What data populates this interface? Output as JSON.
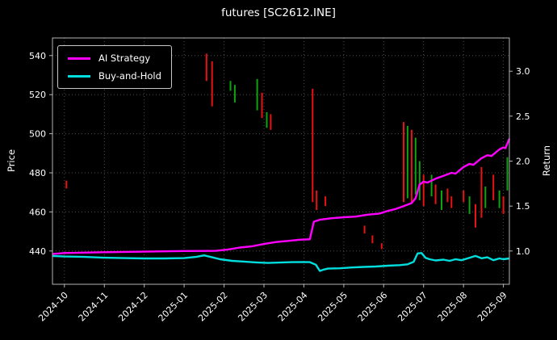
{
  "colors": {
    "background": "#000000",
    "text": "#ffffff",
    "grid": "#4d4d4d",
    "frame": "#b4b4b4"
  },
  "chart_data": {
    "type": "line",
    "title": "futures [SC2612.INE]",
    "ylabel_left": "Price",
    "ylabel_right": "Return",
    "x_ticks": [
      "2024-10",
      "2024-11",
      "2024-12",
      "2025-01",
      "2025-02",
      "2025-03",
      "2025-04",
      "2025-05",
      "2025-06",
      "2025-07",
      "2025-08",
      "2025-09"
    ],
    "y_ticks_left": [
      440,
      460,
      480,
      500,
      520,
      540
    ],
    "y_ticks_right": [
      1.0,
      1.5,
      2.0,
      2.5,
      3.0
    ],
    "x_domain": [
      -0.3,
      11.15
    ],
    "price_domain": [
      423,
      549
    ],
    "return_domain": [
      0.63,
      3.37
    ],
    "grid": true,
    "legend_position": "upper-left",
    "series": [
      {
        "name": "AI Strategy",
        "color": "#ff00ff",
        "axis": "price",
        "points": [
          [
            -0.3,
            438.5
          ],
          [
            0,
            439
          ],
          [
            1,
            439.4
          ],
          [
            2,
            439.7
          ],
          [
            3,
            440
          ],
          [
            3.8,
            440.1
          ],
          [
            4.1,
            440.8
          ],
          [
            4.4,
            441.8
          ],
          [
            4.7,
            442.4
          ],
          [
            5,
            443.6
          ],
          [
            5.3,
            444.6
          ],
          [
            5.6,
            445.2
          ],
          [
            5.9,
            445.8
          ],
          [
            6.15,
            446
          ],
          [
            6.25,
            455
          ],
          [
            6.4,
            456
          ],
          [
            6.7,
            456.8
          ],
          [
            7,
            457.3
          ],
          [
            7.3,
            457.6
          ],
          [
            7.6,
            458.6
          ],
          [
            7.9,
            459.2
          ],
          [
            8.1,
            460.5
          ],
          [
            8.3,
            461.5
          ],
          [
            8.5,
            463
          ],
          [
            8.7,
            464.5
          ],
          [
            8.8,
            467
          ],
          [
            8.9,
            474
          ],
          [
            9,
            475.5
          ],
          [
            9.1,
            475
          ],
          [
            9.3,
            477
          ],
          [
            9.5,
            478.5
          ],
          [
            9.7,
            480
          ],
          [
            9.8,
            479.6
          ],
          [
            10,
            483
          ],
          [
            10.15,
            484.6
          ],
          [
            10.25,
            484.1
          ],
          [
            10.45,
            487.5
          ],
          [
            10.6,
            489
          ],
          [
            10.7,
            488.6
          ],
          [
            10.9,
            492
          ],
          [
            11,
            493
          ],
          [
            11.05,
            492.6
          ],
          [
            11.15,
            497.5
          ]
        ]
      },
      {
        "name": "Buy-and-Hold",
        "color": "#00dede",
        "axis": "price",
        "points": [
          [
            -0.3,
            437.5
          ],
          [
            0,
            437.2
          ],
          [
            0.5,
            437
          ],
          [
            1,
            436.6
          ],
          [
            1.5,
            436.4
          ],
          [
            2,
            436.2
          ],
          [
            2.5,
            436.2
          ],
          [
            3,
            436.4
          ],
          [
            3.3,
            437
          ],
          [
            3.5,
            437.8
          ],
          [
            3.7,
            436.8
          ],
          [
            3.9,
            435.8
          ],
          [
            4.2,
            435
          ],
          [
            4.5,
            434.6
          ],
          [
            4.8,
            434.2
          ],
          [
            5.1,
            433.9
          ],
          [
            5.4,
            434.1
          ],
          [
            5.7,
            434.3
          ],
          [
            6,
            434.4
          ],
          [
            6.15,
            434.3
          ],
          [
            6.3,
            433
          ],
          [
            6.4,
            429.8
          ],
          [
            6.5,
            430.5
          ],
          [
            6.6,
            431
          ],
          [
            6.9,
            431.2
          ],
          [
            7.2,
            431.6
          ],
          [
            7.5,
            431.9
          ],
          [
            7.8,
            432.1
          ],
          [
            8.1,
            432.5
          ],
          [
            8.4,
            432.8
          ],
          [
            8.6,
            433.2
          ],
          [
            8.75,
            434.5
          ],
          [
            8.85,
            438.8
          ],
          [
            8.95,
            439
          ],
          [
            9.05,
            436.5
          ],
          [
            9.15,
            435.8
          ],
          [
            9.3,
            435.2
          ],
          [
            9.5,
            435.6
          ],
          [
            9.65,
            435
          ],
          [
            9.8,
            435.8
          ],
          [
            9.95,
            435.3
          ],
          [
            10.1,
            436.2
          ],
          [
            10.3,
            437.5
          ],
          [
            10.45,
            436.3
          ],
          [
            10.6,
            436.8
          ],
          [
            10.75,
            435.3
          ],
          [
            10.9,
            436.2
          ],
          [
            11,
            435.8
          ],
          [
            11.15,
            436.2
          ]
        ]
      }
    ],
    "candle_colors": {
      "up": "#0fa30f",
      "down": "#ea1212"
    },
    "candles": [
      [
        0.05,
        472,
        476,
        "down"
      ],
      [
        3.56,
        527,
        541,
        "down"
      ],
      [
        3.7,
        514,
        537,
        "down"
      ],
      [
        4.16,
        522,
        527,
        "up"
      ],
      [
        4.27,
        516,
        525,
        "up"
      ],
      [
        4.83,
        512,
        528,
        "up"
      ],
      [
        4.95,
        508,
        521,
        "down"
      ],
      [
        5.07,
        503,
        511,
        "up"
      ],
      [
        5.17,
        502,
        510,
        "down"
      ],
      [
        6.22,
        465,
        523,
        "down"
      ],
      [
        6.32,
        461,
        471,
        "down"
      ],
      [
        6.54,
        463,
        468,
        "down"
      ],
      [
        7.52,
        449,
        453,
        "down"
      ],
      [
        7.72,
        444,
        448,
        "down"
      ],
      [
        7.95,
        441,
        444,
        "down"
      ],
      [
        8.5,
        465,
        506,
        "down"
      ],
      [
        8.6,
        467,
        504,
        "up"
      ],
      [
        8.7,
        465,
        502,
        "down"
      ],
      [
        8.8,
        469,
        498,
        "up"
      ],
      [
        8.9,
        466,
        486,
        "up"
      ],
      [
        9,
        463,
        479,
        "down"
      ],
      [
        9.2,
        468,
        479,
        "up"
      ],
      [
        9.3,
        464,
        474,
        "down"
      ],
      [
        9.45,
        461,
        471,
        "up"
      ],
      [
        9.6,
        465,
        472,
        "down"
      ],
      [
        9.7,
        462,
        468,
        "down"
      ],
      [
        10,
        465,
        471,
        "down"
      ],
      [
        10.15,
        459,
        468,
        "up"
      ],
      [
        10.3,
        452,
        464,
        "down"
      ],
      [
        10.45,
        457,
        483,
        "down"
      ],
      [
        10.55,
        462,
        473,
        "up"
      ],
      [
        10.75,
        466,
        479,
        "down"
      ],
      [
        10.9,
        462,
        471,
        "up"
      ],
      [
        11,
        459,
        468,
        "down"
      ],
      [
        11.1,
        471,
        488,
        "up"
      ]
    ]
  }
}
